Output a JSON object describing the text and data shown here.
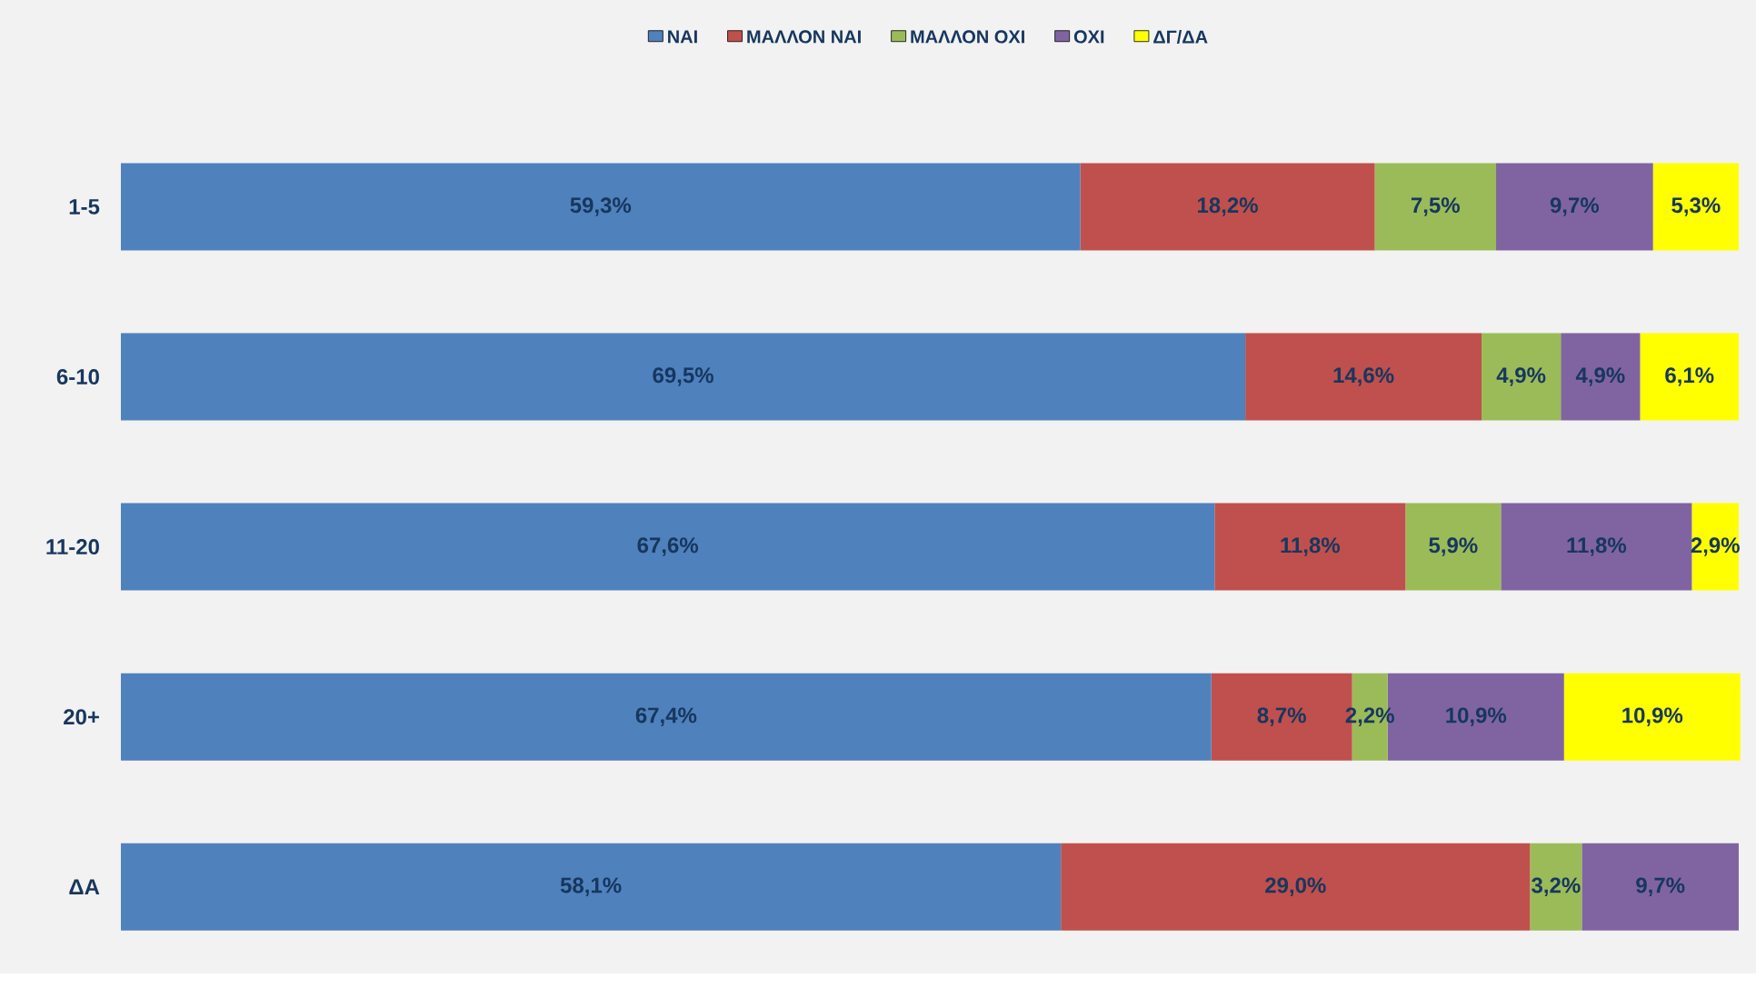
{
  "chart_data": {
    "type": "bar",
    "orientation": "horizontal",
    "stacked": true,
    "legend": "top",
    "tick_labels": "y",
    "xlim": [
      0,
      100
    ],
    "categories": [
      "1-5",
      "6-10",
      "11-20",
      "20+",
      "ΔΑ"
    ],
    "series": [
      {
        "name": "ΝΑΙ",
        "color": "#4f81bd",
        "values": [
          59.3,
          69.5,
          67.6,
          67.4,
          58.1
        ],
        "value_labels": [
          "59,3%",
          "69,5%",
          "67,6%",
          "67,4%",
          "58,1%"
        ]
      },
      {
        "name": "ΜΑΛΛΟΝ ΝΑΙ",
        "color": "#c0504d",
        "values": [
          18.2,
          14.6,
          11.8,
          8.7,
          29.0
        ],
        "value_labels": [
          "18,2%",
          "14,6%",
          "11,8%",
          "8,7%",
          "29,0%"
        ]
      },
      {
        "name": "ΜΑΛΛΟΝ ΟΧΙ",
        "color": "#9bbb59",
        "values": [
          7.5,
          4.9,
          5.9,
          2.2,
          3.2
        ],
        "value_labels": [
          "7,5%",
          "4,9%",
          "5,9%",
          "2,2%",
          "3,2%"
        ]
      },
      {
        "name": "ΟΧΙ",
        "color": "#8064a2",
        "values": [
          9.7,
          4.9,
          11.8,
          10.9,
          9.7
        ],
        "value_labels": [
          "9,7%",
          "4,9%",
          "11,8%",
          "10,9%",
          "9,7%"
        ]
      },
      {
        "name": "ΔΓ/ΔΑ",
        "color": "#ffff00",
        "values": [
          5.3,
          6.1,
          2.9,
          10.9,
          null
        ],
        "value_labels": [
          "5,3%",
          "6,1%",
          "2,9%",
          "10,9%",
          null
        ]
      }
    ]
  }
}
